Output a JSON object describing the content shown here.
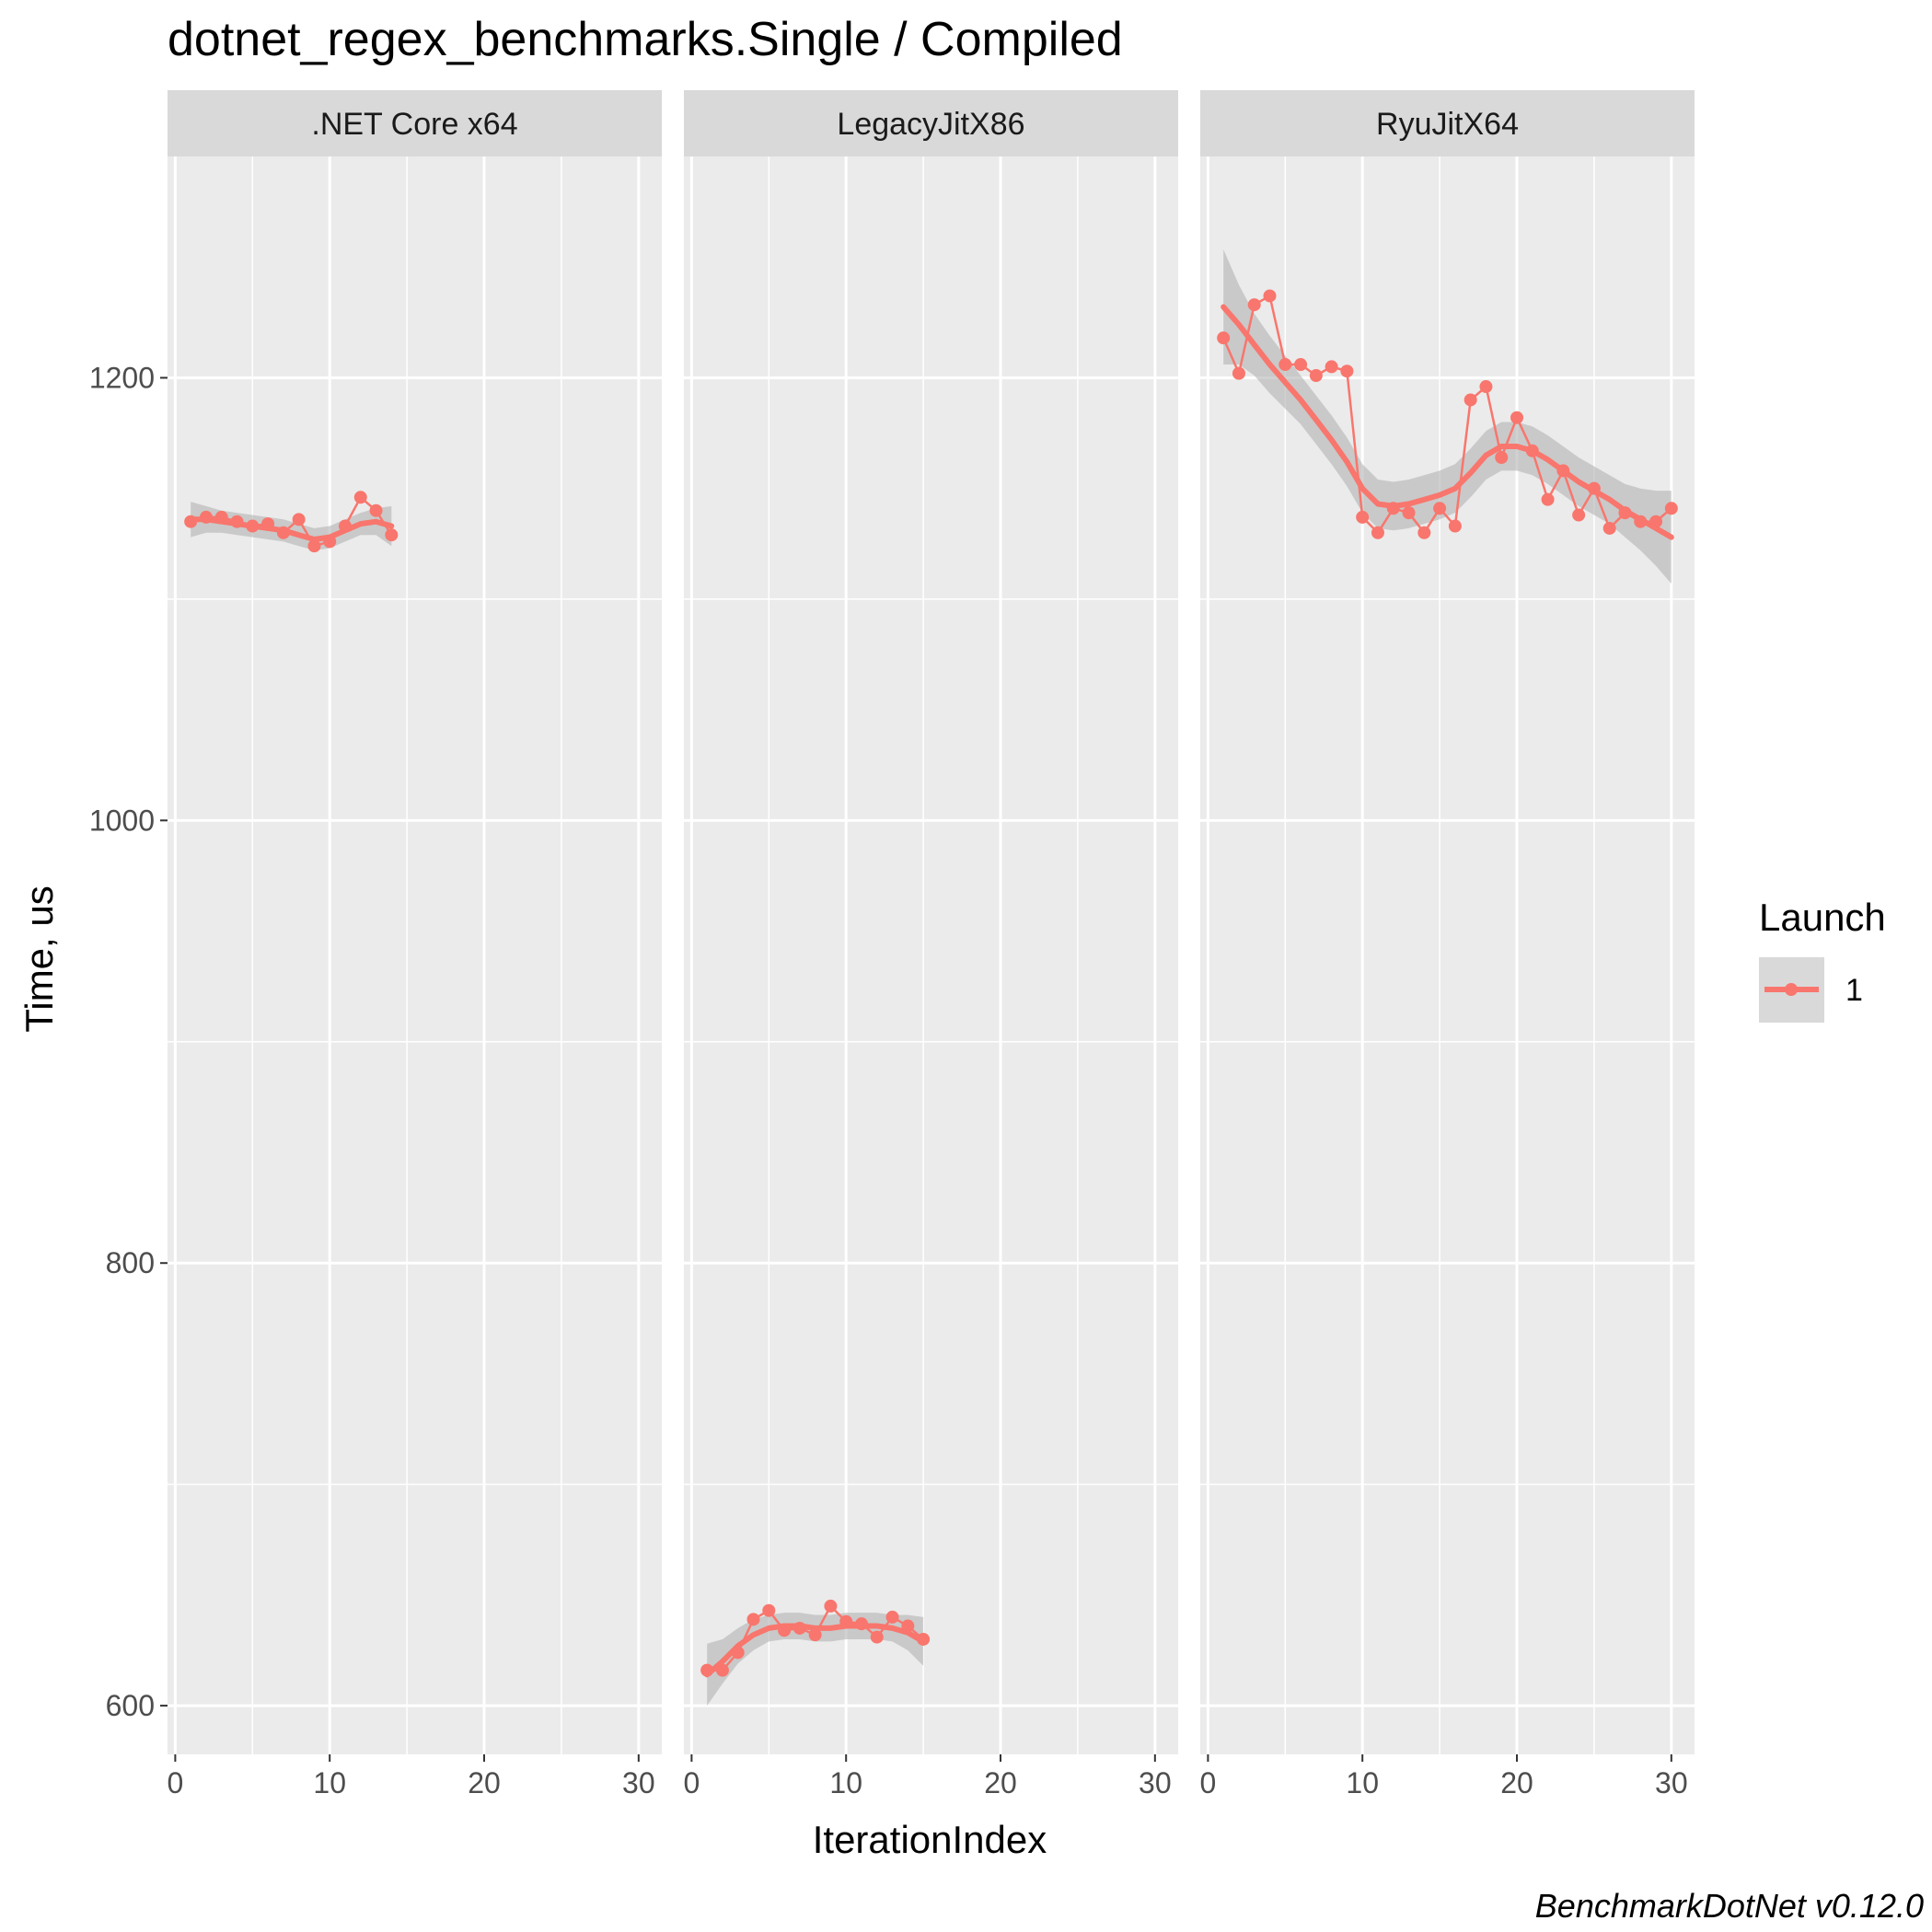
{
  "chart_data": {
    "type": "line",
    "title": "dotnet_regex_benchmarks.Single / Compiled",
    "xlabel": "IterationIndex",
    "ylabel": "Time, us",
    "caption": "BenchmarkDotNet v0.12.0",
    "x_ticks": [
      "0",
      "10",
      "20",
      "30"
    ],
    "y_ticks": [
      "600",
      "800",
      "1000",
      "1200"
    ],
    "xlim": [
      -0.5,
      31.5
    ],
    "ylim": [
      578,
      1300
    ],
    "grid": true,
    "legend": {
      "title": "Launch",
      "placement": "right",
      "entries": [
        "1"
      ]
    },
    "colors": {
      "series": "#f8766d",
      "band": "#b3b3b3",
      "panel_bg": "#ebebeb",
      "strip_bg": "#d9d9d9",
      "grid": "#ffffff"
    },
    "facets": [
      {
        "label": ".NET Core x64",
        "series": [
          {
            "name": "1",
            "x": [
              1,
              2,
              3,
              4,
              5,
              6,
              7,
              8,
              9,
              10,
              11,
              12,
              13,
              14
            ],
            "y": [
              1135,
              1137,
              1137,
              1135,
              1133,
              1134,
              1130,
              1136,
              1124,
              1126,
              1133,
              1146,
              1140,
              1129
            ],
            "smooth": [
              1136,
              1136,
              1135,
              1134,
              1133,
              1132,
              1131,
              1129,
              1127,
              1128,
              1131,
              1134,
              1135,
              1133
            ],
            "band_half": [
              8,
              6,
              5,
              5,
              5,
              5,
              5,
              5,
              5,
              5,
              5,
              5,
              6,
              9
            ]
          }
        ]
      },
      {
        "label": "LegacyJitX86",
        "series": [
          {
            "name": "1",
            "x": [
              1,
              2,
              3,
              4,
              5,
              6,
              7,
              8,
              9,
              10,
              11,
              12,
              13,
              14,
              15
            ],
            "y": [
              616,
              616,
              624,
              639,
              643,
              634,
              635,
              632,
              645,
              638,
              637,
              631,
              640,
              636,
              630
            ],
            "smooth": [
              614,
              620,
              627,
              632,
              635,
              636,
              636,
              635,
              635,
              636,
              636,
              636,
              635,
              633,
              629
            ],
            "band_half": [
              14,
              10,
              8,
              7,
              6,
              6,
              6,
              6,
              6,
              6,
              6,
              6,
              6,
              8,
              11
            ]
          }
        ]
      },
      {
        "label": "RyuJitX64",
        "series": [
          {
            "name": "1",
            "x": [
              1,
              2,
              3,
              4,
              5,
              6,
              7,
              8,
              9,
              10,
              11,
              12,
              13,
              14,
              15,
              16,
              17,
              18,
              19,
              20,
              21,
              22,
              23,
              24,
              25,
              26,
              27,
              28,
              29,
              30
            ],
            "y": [
              1218,
              1202,
              1233,
              1237,
              1206,
              1206,
              1201,
              1205,
              1203,
              1137,
              1130,
              1141,
              1139,
              1130,
              1141,
              1133,
              1190,
              1196,
              1164,
              1182,
              1167,
              1145,
              1158,
              1138,
              1150,
              1132,
              1139,
              1135,
              1135,
              1141
            ],
            "smooth": [
              1232,
              1224,
              1215,
              1206,
              1198,
              1190,
              1181,
              1172,
              1162,
              1150,
              1143,
              1142,
              1143,
              1145,
              1147,
              1150,
              1157,
              1165,
              1169,
              1169,
              1167,
              1163,
              1158,
              1153,
              1149,
              1145,
              1140,
              1136,
              1132,
              1128
            ],
            "band_half": [
              26,
              18,
              14,
              13,
              12,
              11,
              11,
              11,
              11,
              11,
              11,
              11,
              11,
              11,
              11,
              11,
              11,
              11,
              11,
              11,
              11,
              11,
              11,
              11,
              11,
              11,
              12,
              14,
              17,
              21
            ]
          }
        ]
      }
    ]
  }
}
